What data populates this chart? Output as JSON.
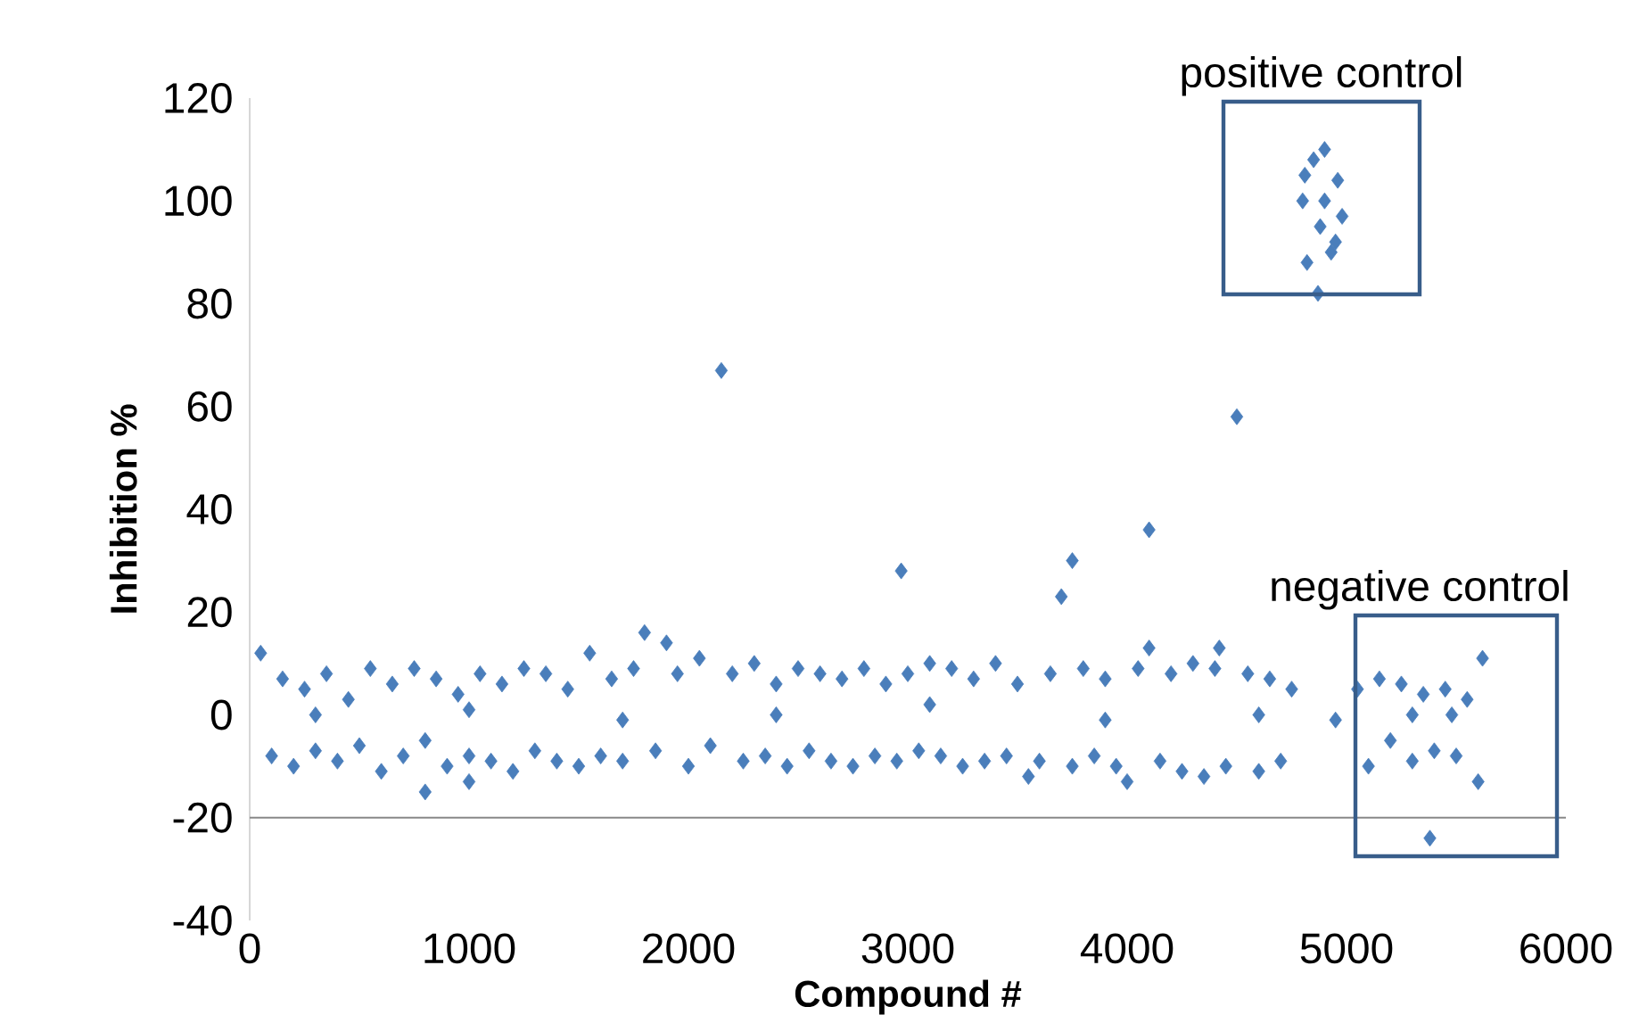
{
  "chart_data": {
    "type": "scatter",
    "xlabel": "Compound #",
    "ylabel": "Inhibition  %",
    "x": [
      50,
      100,
      150,
      200,
      250,
      300,
      350,
      400,
      450,
      500,
      550,
      600,
      650,
      700,
      750,
      800,
      850,
      900,
      950,
      1000,
      1050,
      1100,
      1150,
      1200,
      1250,
      1300,
      1350,
      1400,
      1450,
      1500,
      1550,
      1600,
      1650,
      1700,
      1750,
      1850,
      1950,
      2000,
      2050,
      2100,
      2200,
      2250,
      2300,
      2350,
      2400,
      2450,
      2500,
      2550,
      2600,
      2650,
      2700,
      2750,
      2800,
      2850,
      2900,
      2950,
      3000,
      3050,
      3100,
      3150,
      3200,
      3250,
      3300,
      3350,
      3400,
      3450,
      3500,
      3600,
      3650,
      3750,
      3800,
      3850,
      3900,
      3950,
      4050,
      4150,
      4200,
      4250,
      4300,
      4350,
      4400,
      4450,
      4550,
      4600,
      4650,
      4700,
      4750,
      300,
      1000,
      1700,
      2400,
      3100,
      3900,
      4600,
      2150,
      4500,
      4100,
      2970,
      3750,
      3700,
      1800,
      1900,
      800,
      1000,
      4000,
      4950,
      3550,
      4420,
      4100,
      4800,
      4820,
      4850,
      4880,
      4900,
      4930,
      4960,
      4980,
      4870,
      4810,
      4950,
      4900,
      5050,
      5100,
      5150,
      5200,
      5250,
      5300,
      5350,
      5400,
      5450,
      5500,
      5550,
      5600,
      5620,
      5300,
      5380,
      5480
    ],
    "values": [
      12,
      -8,
      7,
      -10,
      5,
      -7,
      8,
      -9,
      3,
      -6,
      9,
      -11,
      6,
      -8,
      9,
      -5,
      7,
      -10,
      4,
      -8,
      8,
      -9,
      6,
      -11,
      9,
      -7,
      8,
      -9,
      5,
      -10,
      12,
      -8,
      7,
      -9,
      9,
      -7,
      8,
      -10,
      11,
      -6,
      8,
      -9,
      10,
      -8,
      6,
      -10,
      9,
      -7,
      8,
      -9,
      7,
      -10,
      9,
      -8,
      6,
      -9,
      8,
      -7,
      10,
      -8,
      9,
      -10,
      7,
      -9,
      10,
      -8,
      6,
      -9,
      8,
      -10,
      9,
      -8,
      7,
      -10,
      9,
      -9,
      8,
      -11,
      10,
      -12,
      9,
      -10,
      8,
      -11,
      7,
      -9,
      5,
      0,
      1,
      -1,
      0,
      2,
      -1,
      0,
      67,
      58,
      36,
      28,
      30,
      23,
      16,
      14,
      -15,
      -13,
      -13,
      -1,
      -12,
      13,
      13,
      100,
      88,
      108,
      95,
      110,
      90,
      104,
      97,
      82,
      105,
      92,
      100,
      5,
      -10,
      7,
      -5,
      6,
      -9,
      4,
      -7,
      5,
      -8,
      3,
      -13,
      11,
      0,
      -24,
      0
    ],
    "color": "#4a7ebb",
    "marker": "diamond",
    "grid": false,
    "xlim": [
      0,
      6000
    ],
    "xticks": [
      0,
      1000,
      2000,
      3000,
      4000,
      5000,
      6000
    ],
    "ylim": [
      -40,
      120
    ],
    "yticks": [
      -40,
      -20,
      0,
      20,
      40,
      60,
      80,
      100,
      120
    ],
    "ref_lines": [
      {
        "axis": "y",
        "value": -20,
        "color": "#888888"
      }
    ],
    "annotations": [
      "positive control",
      "negative control"
    ]
  }
}
